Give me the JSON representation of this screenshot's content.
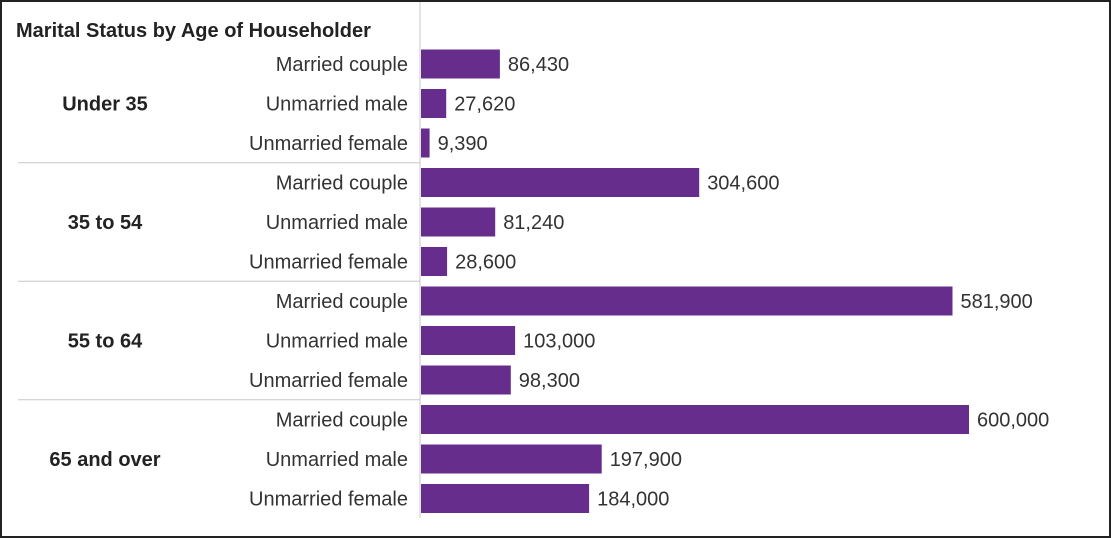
{
  "chart_data": {
    "type": "bar",
    "orientation": "horizontal",
    "title": "Marital Status by Age of Householder",
    "xlabel": "",
    "ylabel": "",
    "xlim": [
      0,
      600000
    ],
    "grid": false,
    "bar_color": "#662d8c",
    "groups": [
      {
        "label": "Under 35",
        "items": [
          {
            "category": "Married couple",
            "value": 86430,
            "value_label": "86,430"
          },
          {
            "category": "Unmarried male",
            "value": 27620,
            "value_label": "27,620"
          },
          {
            "category": "Unmarried female",
            "value": 9390,
            "value_label": "9,390"
          }
        ]
      },
      {
        "label": "35 to 54",
        "items": [
          {
            "category": "Married couple",
            "value": 304600,
            "value_label": "304,600"
          },
          {
            "category": "Unmarried male",
            "value": 81240,
            "value_label": "81,240"
          },
          {
            "category": "Unmarried female",
            "value": 28600,
            "value_label": "28,600"
          }
        ]
      },
      {
        "label": "55 to 64",
        "items": [
          {
            "category": "Married couple",
            "value": 581900,
            "value_label": "581,900"
          },
          {
            "category": "Unmarried male",
            "value": 103000,
            "value_label": "103,000"
          },
          {
            "category": "Unmarried female",
            "value": 98300,
            "value_label": "98,300"
          }
        ]
      },
      {
        "label": "65 and over",
        "items": [
          {
            "category": "Married couple",
            "value": 600000,
            "value_label": "600,000"
          },
          {
            "category": "Unmarried male",
            "value": 197900,
            "value_label": "197,900"
          },
          {
            "category": "Unmarried female",
            "value": 184000,
            "value_label": "184,000"
          }
        ]
      }
    ]
  }
}
